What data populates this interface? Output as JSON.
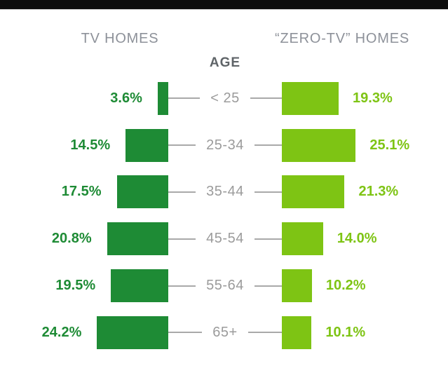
{
  "topbar": {
    "color": "#0d0d0d"
  },
  "header": {
    "left": "TV HOMES",
    "right": "“ZERO-TV” HOMES",
    "center": "AGE"
  },
  "colors": {
    "dark_green": "#1e8b35",
    "light_green": "#7ec414",
    "header_gray": "#8d9199",
    "age_gray": "#9b9b9b",
    "connector_gray": "#a9a9a9"
  },
  "rows": [
    {
      "age": "< 25",
      "tv_label": "3.6%",
      "zero_label": "19.3%",
      "tv": 3.6,
      "zero": 19.3
    },
    {
      "age": "25-34",
      "tv_label": "14.5%",
      "zero_label": "25.1%",
      "tv": 14.5,
      "zero": 25.1
    },
    {
      "age": "35-44",
      "tv_label": "17.5%",
      "zero_label": "21.3%",
      "tv": 17.5,
      "zero": 21.3
    },
    {
      "age": "45-54",
      "tv_label": "20.8%",
      "zero_label": "14.0%",
      "tv": 20.8,
      "zero": 14.0
    },
    {
      "age": "55-64",
      "tv_label": "19.5%",
      "zero_label": "10.2%",
      "tv": 19.5,
      "zero": 10.2
    },
    {
      "age": "65+",
      "tv_label": "24.2%",
      "zero_label": "10.1%",
      "tv": 24.2,
      "zero": 10.1
    }
  ],
  "chart_data": {
    "type": "bar",
    "variant": "butterfly",
    "title": "",
    "center_axis_label": "AGE",
    "categories": [
      "< 25",
      "25-34",
      "35-44",
      "45-54",
      "55-64",
      "65+"
    ],
    "series": [
      {
        "name": "TV HOMES",
        "side": "left",
        "color": "#1e8b35",
        "values": [
          3.6,
          14.5,
          17.5,
          20.8,
          19.5,
          24.2
        ]
      },
      {
        "name": "“ZERO-TV” HOMES",
        "side": "right",
        "color": "#7ec414",
        "values": [
          19.3,
          25.1,
          21.3,
          14.0,
          10.2,
          10.1
        ]
      }
    ],
    "value_unit": "%",
    "legend_position": "top",
    "grid": false
  }
}
